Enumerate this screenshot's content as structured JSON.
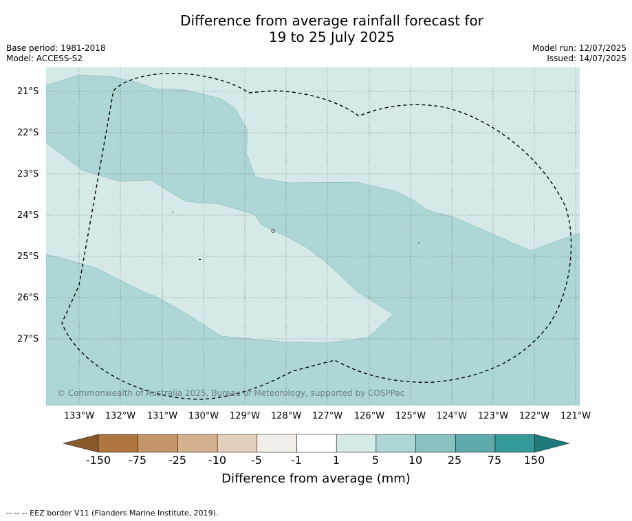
{
  "title": {
    "line1": "Difference from average rainfall forecast for",
    "line2": "19 to 25 July 2025"
  },
  "meta": {
    "base_period": "Base period: 1981-2018",
    "model": "Model: ACCESS-S2",
    "model_run": "Model run: 12/07/2025",
    "issued": "Issued: 14/07/2025"
  },
  "map": {
    "lat_labels": [
      "21°S",
      "22°S",
      "23°S",
      "24°S",
      "25°S",
      "26°S",
      "27°S"
    ],
    "lon_labels": [
      "133°W",
      "132°W",
      "131°W",
      "130°W",
      "129°W",
      "128°W",
      "127°W",
      "126°W",
      "125°W",
      "124°W",
      "123°W",
      "122°W",
      "121°W"
    ],
    "copyright": "© Commonwealth of Australia 2025, Bureau of Meteorology, supported by COSPPac",
    "colors": {
      "light": "#d5e9e8",
      "medium": "#aed6d6",
      "grid": "#555555",
      "eez": "#000000"
    }
  },
  "colorbar": {
    "label": "Difference from average (mm)",
    "ticks": [
      "-150",
      "-75",
      "-25",
      "-10",
      "-5",
      "-1",
      "1",
      "5",
      "10",
      "25",
      "75",
      "150"
    ],
    "colors": [
      "#8b5a2b",
      "#b0763f",
      "#c49569",
      "#d5b190",
      "#e4cfbd",
      "#f1ede8",
      "#ffffff",
      "#d5e9e8",
      "#aed6d6",
      "#89c0c0",
      "#5faaab",
      "#339999",
      "#1f7a7a"
    ]
  },
  "footnote": "--  --  -- EEZ border V11 (Flanders Marine Institute, 2019)."
}
